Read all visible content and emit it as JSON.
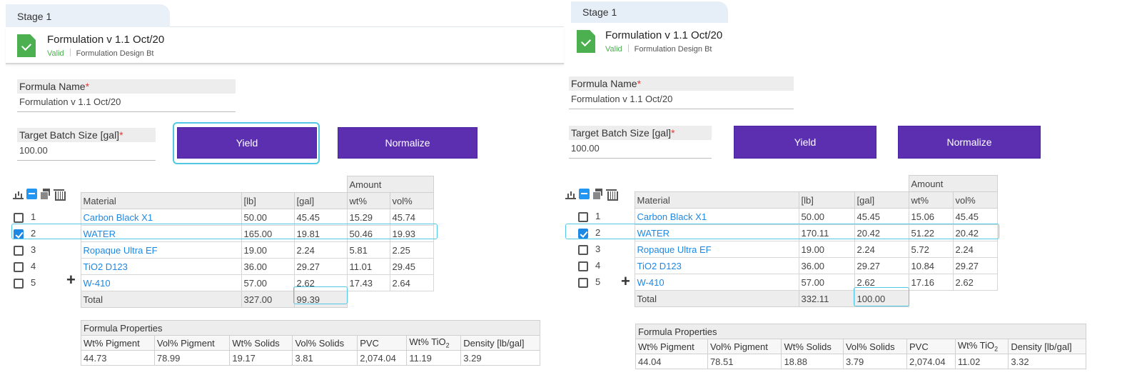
{
  "tab_label": "Stage 1",
  "header": {
    "title": "Formulation v 1.1 Oct/20",
    "status": "Valid",
    "subtitle": "Formulation Design Bt"
  },
  "form": {
    "name_label": "Formula Name",
    "name_value": "Formulation v 1.1 Oct/20",
    "batch_label": "Target Batch Size [gal]",
    "batch_value": "100.00",
    "required_mark": "*"
  },
  "buttons": {
    "yield": "Yield",
    "normalize": "Normalize"
  },
  "table": {
    "group_header": "Amount",
    "columns": [
      "Material",
      "[lb]",
      "[gal]",
      "wt%",
      "vol%"
    ],
    "total_label": "Total"
  },
  "properties": {
    "title": "Formula Properties",
    "columns": [
      "Wt% Pigment",
      "Vol% Pigment",
      "Wt% Solids",
      "Vol% Solids",
      "PVC",
      "Wt% TiO",
      "Density [lb/gal]"
    ],
    "tio_subscript": "2"
  },
  "left": {
    "rows": [
      {
        "num": "1",
        "checked": false,
        "material": "Carbon Black X1",
        "lb": "50.00",
        "gal": "45.45",
        "wt": "15.29",
        "vol": "45.74"
      },
      {
        "num": "2",
        "checked": true,
        "material": "WATER",
        "lb": "165.00",
        "gal": "19.81",
        "wt": "50.46",
        "vol": "19.93"
      },
      {
        "num": "3",
        "checked": false,
        "material": "Ropaque Ultra EF",
        "lb": "19.00",
        "gal": "2.24",
        "wt": "5.81",
        "vol": "2.25"
      },
      {
        "num": "4",
        "checked": false,
        "material": "TiO2 D123",
        "lb": "36.00",
        "gal": "29.27",
        "wt": "11.01",
        "vol": "29.45"
      },
      {
        "num": "5",
        "checked": false,
        "material": "W-410",
        "lb": "57.00",
        "gal": "2.62",
        "wt": "17.43",
        "vol": "2.64"
      }
    ],
    "total_lb": "327.00",
    "total_gal": "99.39",
    "props": [
      "44.73",
      "78.99",
      "19.17",
      "3.81",
      "2,074.04",
      "11.19",
      "3.29"
    ]
  },
  "right": {
    "rows": [
      {
        "num": "1",
        "checked": false,
        "material": "Carbon Black X1",
        "lb": "50.00",
        "gal": "45.45",
        "wt": "15.06",
        "vol": "45.45"
      },
      {
        "num": "2",
        "checked": true,
        "material": "WATER",
        "lb": "170.11",
        "gal": "20.42",
        "wt": "51.22",
        "vol": "20.42"
      },
      {
        "num": "3",
        "checked": false,
        "material": "Ropaque Ultra EF",
        "lb": "19.00",
        "gal": "2.24",
        "wt": "5.72",
        "vol": "2.24"
      },
      {
        "num": "4",
        "checked": false,
        "material": "TiO2 D123",
        "lb": "36.00",
        "gal": "29.27",
        "wt": "10.84",
        "vol": "29.27"
      },
      {
        "num": "5",
        "checked": false,
        "material": "W-410",
        "lb": "57.00",
        "gal": "2.62",
        "wt": "17.16",
        "vol": "2.62"
      }
    ],
    "total_lb": "332.11",
    "total_gal": "100.00",
    "props": [
      "44.04",
      "78.51",
      "18.88",
      "3.79",
      "2,074.04",
      "11.02",
      "3.32"
    ]
  },
  "colors": {
    "accent_button": "#5b2fb0",
    "highlight": "#53c7e6",
    "link": "#1e88e5",
    "valid": "#4caf50",
    "required": "#e53935"
  },
  "icons": [
    "chart-icon",
    "collapse-icon",
    "copy-icon",
    "trash-icon",
    "document-check-icon",
    "add-row-icon"
  ]
}
